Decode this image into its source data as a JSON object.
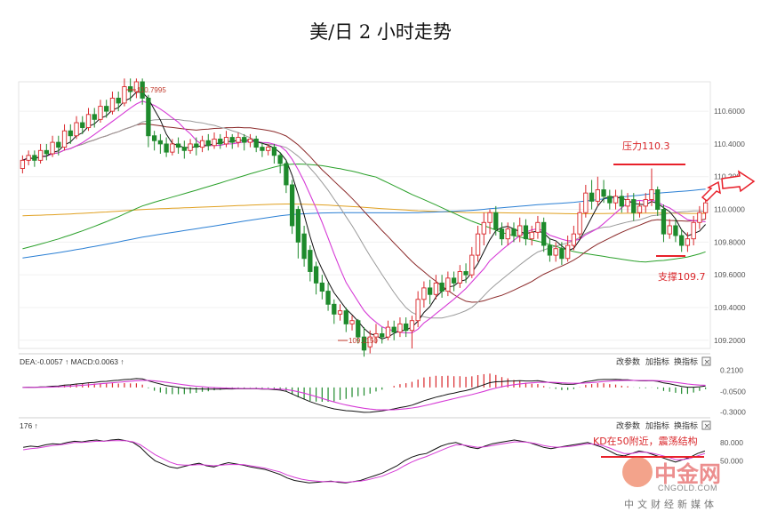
{
  "title": "美/日 2 小时走势",
  "colors": {
    "up": "#d9262a",
    "down": "#1e8a2c",
    "ma5": "#111111",
    "ma10": "#d63bd6",
    "ma20": "#9a9a9a",
    "ma30": "#8b2a2a",
    "ma60": "#2aa02a",
    "ma120": "#2a7fd4",
    "ma250": "#e0a020",
    "annotation": "#e8202a"
  },
  "main_panel": {
    "y_ticks": [
      "110.6000",
      "110.4000",
      "110.2000",
      "110.0000",
      "109.8000",
      "109.6000",
      "109.4000",
      "109.2000"
    ],
    "peak_label": "110.7995",
    "trough_label": "109.1150",
    "resistance_label": "压力110.3",
    "support_label": "支撑109.7"
  },
  "macd_panel": {
    "header": "DEA:-0.0057 ↑ MACD:0.0063 ↑",
    "y_ticks": [
      "0.2100",
      "-0.0500",
      "-0.3000"
    ],
    "buttons": [
      "改参数",
      "加指标",
      "换指标"
    ]
  },
  "kd_panel": {
    "header": "176 ↑",
    "y_ticks": [
      "80.000",
      "50.000"
    ],
    "buttons": [
      "改参数",
      "加指标",
      "换指标"
    ],
    "annotation": "KD在50附近，震荡结构"
  },
  "watermark": {
    "logo": "中金网",
    "site": "CNGOLD.COM",
    "slogan": "中文财经新媒体"
  },
  "chart_data": [
    {
      "type": "candlestick",
      "title": "美/日 2 小时走势",
      "ylim": [
        109.15,
        110.78
      ],
      "y_ticks": [
        110.6,
        110.4,
        110.2,
        110.0,
        109.8,
        109.6,
        109.4,
        109.2
      ],
      "candles": [
        [
          110.25,
          110.3,
          110.22,
          110.33
        ],
        [
          110.3,
          110.33,
          110.27,
          110.36
        ],
        [
          110.33,
          110.3,
          110.26,
          110.36
        ],
        [
          110.3,
          110.36,
          110.28,
          110.4
        ],
        [
          110.36,
          110.34,
          110.3,
          110.4
        ],
        [
          110.34,
          110.41,
          110.32,
          110.45
        ],
        [
          110.41,
          110.38,
          110.33,
          110.45
        ],
        [
          110.38,
          110.48,
          110.36,
          110.52
        ],
        [
          110.48,
          110.45,
          110.4,
          110.52
        ],
        [
          110.45,
          110.53,
          110.43,
          110.57
        ],
        [
          110.53,
          110.5,
          110.46,
          110.57
        ],
        [
          110.5,
          110.58,
          110.48,
          110.62
        ],
        [
          110.58,
          110.55,
          110.5,
          110.62
        ],
        [
          110.55,
          110.63,
          110.53,
          110.67
        ],
        [
          110.63,
          110.6,
          110.56,
          110.67
        ],
        [
          110.6,
          110.68,
          110.58,
          110.72
        ],
        [
          110.68,
          110.65,
          110.6,
          110.72
        ],
        [
          110.65,
          110.75,
          110.63,
          110.8
        ],
        [
          110.75,
          110.72,
          110.66,
          110.8
        ],
        [
          110.72,
          110.78,
          110.68,
          110.8
        ],
        [
          110.78,
          110.68,
          110.64,
          110.8
        ],
        [
          110.68,
          110.45,
          110.38,
          110.7
        ],
        [
          110.45,
          110.42,
          110.36,
          110.48
        ],
        [
          110.42,
          110.4,
          110.34,
          110.46
        ],
        [
          110.4,
          110.35,
          110.32,
          110.44
        ],
        [
          110.35,
          110.4,
          110.33,
          110.43
        ],
        [
          110.4,
          110.38,
          110.34,
          110.44
        ],
        [
          110.38,
          110.36,
          110.31,
          110.42
        ],
        [
          110.36,
          110.4,
          110.34,
          110.43
        ],
        [
          110.4,
          110.38,
          110.33,
          110.44
        ],
        [
          110.38,
          110.42,
          110.35,
          110.45
        ],
        [
          110.42,
          110.39,
          110.36,
          110.46
        ],
        [
          110.39,
          110.43,
          110.37,
          110.47
        ],
        [
          110.43,
          110.4,
          110.37,
          110.46
        ],
        [
          110.4,
          110.44,
          110.38,
          110.48
        ],
        [
          110.44,
          110.41,
          110.37,
          110.46
        ],
        [
          110.41,
          110.44,
          110.38,
          110.47
        ],
        [
          110.44,
          110.41,
          110.36,
          110.46
        ],
        [
          110.41,
          110.43,
          110.38,
          110.46
        ],
        [
          110.43,
          110.38,
          110.35,
          110.45
        ],
        [
          110.38,
          110.36,
          110.32,
          110.41
        ],
        [
          110.36,
          110.38,
          110.33,
          110.4
        ],
        [
          110.38,
          110.33,
          110.28,
          110.4
        ],
        [
          110.33,
          110.28,
          110.22,
          110.35
        ],
        [
          110.28,
          110.15,
          110.1,
          110.3
        ],
        [
          110.15,
          109.9,
          109.85,
          110.18
        ],
        [
          110.0,
          109.8,
          109.7,
          110.02
        ],
        [
          109.85,
          109.7,
          109.65,
          109.9
        ],
        [
          109.75,
          109.62,
          109.56,
          109.78
        ],
        [
          109.65,
          109.55,
          109.48,
          109.68
        ],
        [
          109.55,
          109.5,
          109.45,
          109.6
        ],
        [
          109.5,
          109.42,
          109.38,
          109.55
        ],
        [
          109.42,
          109.36,
          109.3,
          109.45
        ],
        [
          109.36,
          109.38,
          109.32,
          109.42
        ],
        [
          109.38,
          109.3,
          109.25,
          109.4
        ],
        [
          109.3,
          109.32,
          109.26,
          109.35
        ],
        [
          109.32,
          109.22,
          109.18,
          109.33
        ],
        [
          109.22,
          109.14,
          109.1,
          109.28
        ],
        [
          109.16,
          109.22,
          109.12,
          109.26
        ],
        [
          109.22,
          109.24,
          109.18,
          109.3
        ],
        [
          109.24,
          109.22,
          109.18,
          109.28
        ],
        [
          109.22,
          109.28,
          109.2,
          109.32
        ],
        [
          109.28,
          109.25,
          109.2,
          109.32
        ],
        [
          109.25,
          109.3,
          109.22,
          109.34
        ],
        [
          109.3,
          109.26,
          109.22,
          109.34
        ],
        [
          109.26,
          109.32,
          109.15,
          109.35
        ],
        [
          109.32,
          109.45,
          109.28,
          109.5
        ],
        [
          109.45,
          109.52,
          109.4,
          109.56
        ],
        [
          109.52,
          109.48,
          109.42,
          109.57
        ],
        [
          109.48,
          109.55,
          109.45,
          109.6
        ],
        [
          109.55,
          109.5,
          109.46,
          109.6
        ],
        [
          109.5,
          109.58,
          109.47,
          109.62
        ],
        [
          109.58,
          109.55,
          109.5,
          109.62
        ],
        [
          109.55,
          109.62,
          109.52,
          109.66
        ],
        [
          109.62,
          109.6,
          109.55,
          109.67
        ],
        [
          109.6,
          109.72,
          109.58,
          109.77
        ],
        [
          109.72,
          109.85,
          109.68,
          109.9
        ],
        [
          109.85,
          109.92,
          109.78,
          109.98
        ],
        [
          109.92,
          109.98,
          109.85,
          110.0
        ],
        [
          109.98,
          109.88,
          109.84,
          110.02
        ],
        [
          109.88,
          109.82,
          109.78,
          109.92
        ],
        [
          109.82,
          109.88,
          109.78,
          109.92
        ],
        [
          109.88,
          109.84,
          109.8,
          109.92
        ],
        [
          109.84,
          109.9,
          109.8,
          109.95
        ],
        [
          109.9,
          109.82,
          109.78,
          109.94
        ],
        [
          109.82,
          109.86,
          109.78,
          109.9
        ],
        [
          109.86,
          109.92,
          109.82,
          109.96
        ],
        [
          109.92,
          109.78,
          109.74,
          109.95
        ],
        [
          109.78,
          109.72,
          109.68,
          109.82
        ],
        [
          109.72,
          109.76,
          109.68,
          109.8
        ],
        [
          109.76,
          109.7,
          109.66,
          109.8
        ],
        [
          109.7,
          109.78,
          109.68,
          109.84
        ],
        [
          109.78,
          109.85,
          109.75,
          109.9
        ],
        [
          109.85,
          109.98,
          109.82,
          110.04
        ],
        [
          109.98,
          110.1,
          109.95,
          110.15
        ],
        [
          110.1,
          110.05,
          110.0,
          110.18
        ],
        [
          110.05,
          110.12,
          110.02,
          110.2
        ],
        [
          110.12,
          110.08,
          110.04,
          110.18
        ],
        [
          110.08,
          110.04,
          110.0,
          110.12
        ],
        [
          110.04,
          110.08,
          110.0,
          110.12
        ],
        [
          110.08,
          110.02,
          109.98,
          110.12
        ],
        [
          110.02,
          110.06,
          109.98,
          110.1
        ],
        [
          110.06,
          109.98,
          109.93,
          110.1
        ],
        [
          109.98,
          110.02,
          109.95,
          110.05
        ],
        [
          110.02,
          110.06,
          109.98,
          110.1
        ],
        [
          110.06,
          110.12,
          110.02,
          110.25
        ],
        [
          110.12,
          110.0,
          109.96,
          110.14
        ],
        [
          110.0,
          109.85,
          109.8,
          110.03
        ],
        [
          109.85,
          109.9,
          109.82,
          109.94
        ],
        [
          109.9,
          109.84,
          109.8,
          109.94
        ],
        [
          109.84,
          109.78,
          109.74,
          109.88
        ],
        [
          109.78,
          109.82,
          109.74,
          109.86
        ],
        [
          109.82,
          109.92,
          109.78,
          109.96
        ],
        [
          109.92,
          109.98,
          109.88,
          110.02
        ],
        [
          109.98,
          110.04,
          109.94,
          110.08
        ]
      ]
    },
    {
      "type": "line",
      "title": "MACD",
      "series_names": [
        "DEA",
        "MACD"
      ],
      "values": {
        "DEA": -0.0057,
        "MACD": 0.0063
      },
      "ylim": [
        -0.35,
        0.26
      ]
    },
    {
      "type": "line",
      "title": "KD",
      "annotation": "KD在50附近，震荡结构",
      "ylim": [
        10,
        100
      ],
      "K": [
        72,
        74,
        73,
        76,
        78,
        77,
        80,
        82,
        81,
        83,
        84,
        82,
        84,
        85,
        83,
        80,
        72,
        60,
        50,
        45,
        40,
        38,
        41,
        44,
        46,
        42,
        40,
        44,
        47,
        45,
        43,
        40,
        38,
        36,
        32,
        28,
        22,
        18,
        16,
        14,
        15,
        16,
        17,
        15,
        14,
        16,
        18,
        22,
        26,
        30,
        36,
        42,
        50,
        56,
        60,
        62,
        68,
        74,
        78,
        80,
        76,
        72,
        70,
        74,
        78,
        80,
        82,
        84,
        82,
        80,
        76,
        72,
        70,
        72,
        74,
        76,
        78,
        80,
        76,
        72,
        66,
        60,
        58,
        62,
        66,
        64,
        60,
        56,
        52,
        48,
        52,
        56,
        62,
        66
      ],
      "D": [
        68,
        70,
        71,
        73,
        75,
        76,
        78,
        80,
        80,
        81,
        82,
        82,
        83,
        83,
        83,
        81,
        76,
        68,
        60,
        54,
        48,
        44,
        43,
        43,
        44,
        43,
        42,
        43,
        44,
        44,
        44,
        42,
        40,
        38,
        35,
        32,
        27,
        23,
        20,
        18,
        17,
        16,
        16,
        16,
        15,
        16,
        17,
        19,
        22,
        25,
        30,
        35,
        42,
        48,
        53,
        57,
        62,
        67,
        72,
        76,
        76,
        74,
        72,
        73,
        75,
        77,
        79,
        81,
        81,
        80,
        78,
        75,
        73,
        72,
        73,
        74,
        76,
        78,
        77,
        75,
        71,
        66,
        62,
        62,
        64,
        64,
        62,
        59,
        56,
        52,
        52,
        54,
        58,
        62
      ]
    }
  ]
}
